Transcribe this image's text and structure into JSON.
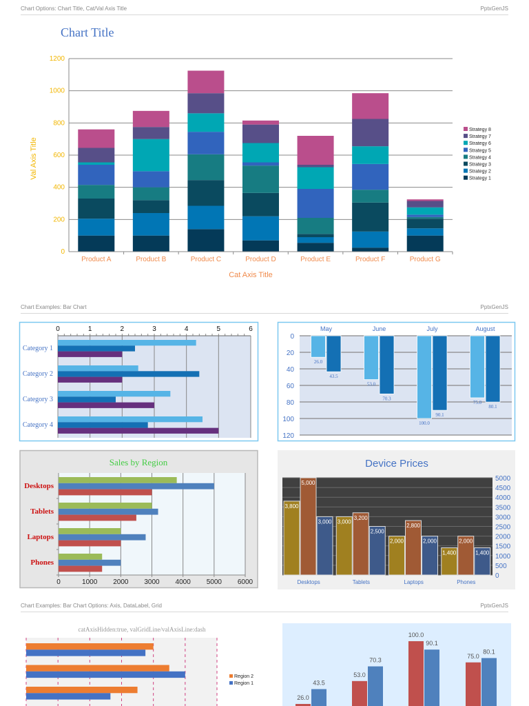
{
  "sections": [
    {
      "title": "Chart Options: Chart Title, Cat/Val Axis Title",
      "brand": "PptxGenJS"
    },
    {
      "title": "Chart Examples: Bar Chart",
      "brand": "PptxGenJS"
    },
    {
      "title": "Chart Examples: Bar Chart Options: Axis, DataLabel, Grid",
      "brand": "PptxGenJS"
    }
  ],
  "chart_data": [
    {
      "type": "bar",
      "stacked": true,
      "title": "Chart Title",
      "xlabel": "Cat Axis Title",
      "ylabel": "Val Axis Title",
      "ylim": [
        0,
        1200
      ],
      "yticks": [
        0,
        200,
        400,
        600,
        800,
        1000,
        1200
      ],
      "grid": true,
      "legend": "right",
      "categories": [
        "Product A",
        "Product B",
        "Product C",
        "Product D",
        "Product E",
        "Product F",
        "Product G"
      ],
      "series": [
        {
          "name": "Strategy 1",
          "color": "#043a58",
          "values": [
            100,
            100,
            140,
            70,
            55,
            25,
            100
          ]
        },
        {
          "name": "Strategy 2",
          "color": "#0176b5",
          "values": [
            105,
            140,
            145,
            150,
            35,
            100,
            45
          ]
        },
        {
          "name": "Strategy 3",
          "color": "#0a4a5f",
          "values": [
            125,
            80,
            160,
            145,
            20,
            180,
            60
          ]
        },
        {
          "name": "Strategy 4",
          "color": "#177c82",
          "values": [
            85,
            80,
            160,
            170,
            100,
            80,
            10
          ]
        },
        {
          "name": "Strategy 5",
          "color": "#3164bd",
          "values": [
            125,
            100,
            140,
            20,
            180,
            160,
            15
          ]
        },
        {
          "name": "Strategy 6",
          "color": "#00a7b4",
          "values": [
            15,
            200,
            115,
            120,
            135,
            110,
            45
          ]
        },
        {
          "name": "Strategy 7",
          "color": "#574f88",
          "values": [
            90,
            75,
            125,
            115,
            15,
            170,
            40
          ]
        },
        {
          "name": "Strategy 8",
          "color": "#ba4e8c",
          "values": [
            115,
            100,
            140,
            25,
            180,
            160,
            10
          ]
        }
      ]
    },
    {
      "type": "bar",
      "orientation": "horizontal",
      "xlim": [
        0,
        6
      ],
      "xticks": [
        0,
        1,
        2,
        3,
        4,
        5,
        6
      ],
      "grid": true,
      "categories": [
        "Category 1",
        "Category 2",
        "Category 3",
        "Category 4"
      ],
      "series": [
        {
          "color": "#56b4e6",
          "values": [
            4.3,
            2.5,
            3.5,
            4.5
          ]
        },
        {
          "color": "#1470b4",
          "values": [
            2.4,
            4.4,
            1.8,
            2.8
          ]
        },
        {
          "color": "#66307e",
          "values": [
            2.0,
            2.0,
            3.0,
            5.0
          ]
        }
      ]
    },
    {
      "type": "bar",
      "orientation": "vertical",
      "y_reversed": true,
      "ylim": [
        0,
        120
      ],
      "yticks": [
        0,
        20,
        40,
        60,
        80,
        100,
        120
      ],
      "grid": true,
      "categories": [
        "May",
        "June",
        "July",
        "August"
      ],
      "series": [
        {
          "color": "#56b4e6",
          "values": [
            26.0,
            53.0,
            100.0,
            75.0
          ],
          "labels": [
            "26.0",
            "53.0",
            "100.0",
            "75.0"
          ]
        },
        {
          "color": "#1470b4",
          "values": [
            43.5,
            70.3,
            90.1,
            80.1
          ],
          "labels": [
            "43.5",
            "70.3",
            "90.1",
            "80.1"
          ]
        }
      ]
    },
    {
      "type": "bar",
      "orientation": "horizontal",
      "title": "Sales by Region",
      "xlim": [
        0,
        6000
      ],
      "xticks": [
        0,
        1000,
        2000,
        3000,
        4000,
        5000,
        6000
      ],
      "grid": true,
      "categories": [
        "Desktops",
        "Tablets",
        "Laptops",
        "Phones"
      ],
      "series": [
        {
          "color": "#9bbb59",
          "values": [
            3800,
            3000,
            2000,
            1400
          ]
        },
        {
          "color": "#4f81bd",
          "values": [
            5000,
            3200,
            2800,
            2000
          ]
        },
        {
          "color": "#c0504d",
          "values": [
            3000,
            2500,
            2000,
            1400
          ]
        }
      ]
    },
    {
      "type": "bar",
      "orientation": "vertical",
      "title": "Device Prices",
      "ylim": [
        0,
        5000
      ],
      "yticks": [
        0,
        500,
        1000,
        1500,
        2000,
        2500,
        3000,
        3500,
        4000,
        4500,
        5000
      ],
      "y_axis_position": "right",
      "grid": true,
      "categories": [
        "Desktops",
        "Tablets",
        "Laptops",
        "Phones"
      ],
      "series": [
        {
          "color": "#a08020",
          "values": [
            3800,
            3000,
            2000,
            1400
          ],
          "labels": [
            "3,800",
            "3,000",
            "2,000",
            "1,400"
          ]
        },
        {
          "color": "#a05a35",
          "values": [
            5000,
            3200,
            2800,
            2000
          ],
          "labels": [
            "5,000",
            "3,200",
            "2,800",
            "2,000"
          ]
        },
        {
          "color": "#3e5a8a",
          "values": [
            3000,
            2500,
            2000,
            1400
          ],
          "labels": [
            "3,000",
            "2,500",
            "2,000",
            "1,400"
          ]
        }
      ]
    },
    {
      "type": "bar",
      "orientation": "horizontal",
      "subtitle": "catAxisHidden:true, valGridLine/valAxisLine:dash",
      "xlim": [
        0,
        6
      ],
      "grid": "dash",
      "legend": "right",
      "series": [
        {
          "name": "Region 2",
          "color": "#ed7d31",
          "values": [
            4.0,
            4.5,
            3.5
          ]
        },
        {
          "name": "Region 1",
          "color": "#4472c4",
          "values": [
            3.75,
            5.0,
            2.65
          ]
        }
      ]
    },
    {
      "type": "bar",
      "orientation": "vertical",
      "series": [
        {
          "color": "#c0504d",
          "values": [
            26.0,
            53.0,
            100.0,
            75.0
          ],
          "labels": [
            "26.0",
            "53.0",
            "100.0",
            "75.0"
          ]
        },
        {
          "color": "#4f81bd",
          "values": [
            43.5,
            70.3,
            90.1,
            80.1
          ],
          "labels": [
            "43.5",
            "70.3",
            "90.1",
            "80.1"
          ]
        }
      ]
    }
  ]
}
